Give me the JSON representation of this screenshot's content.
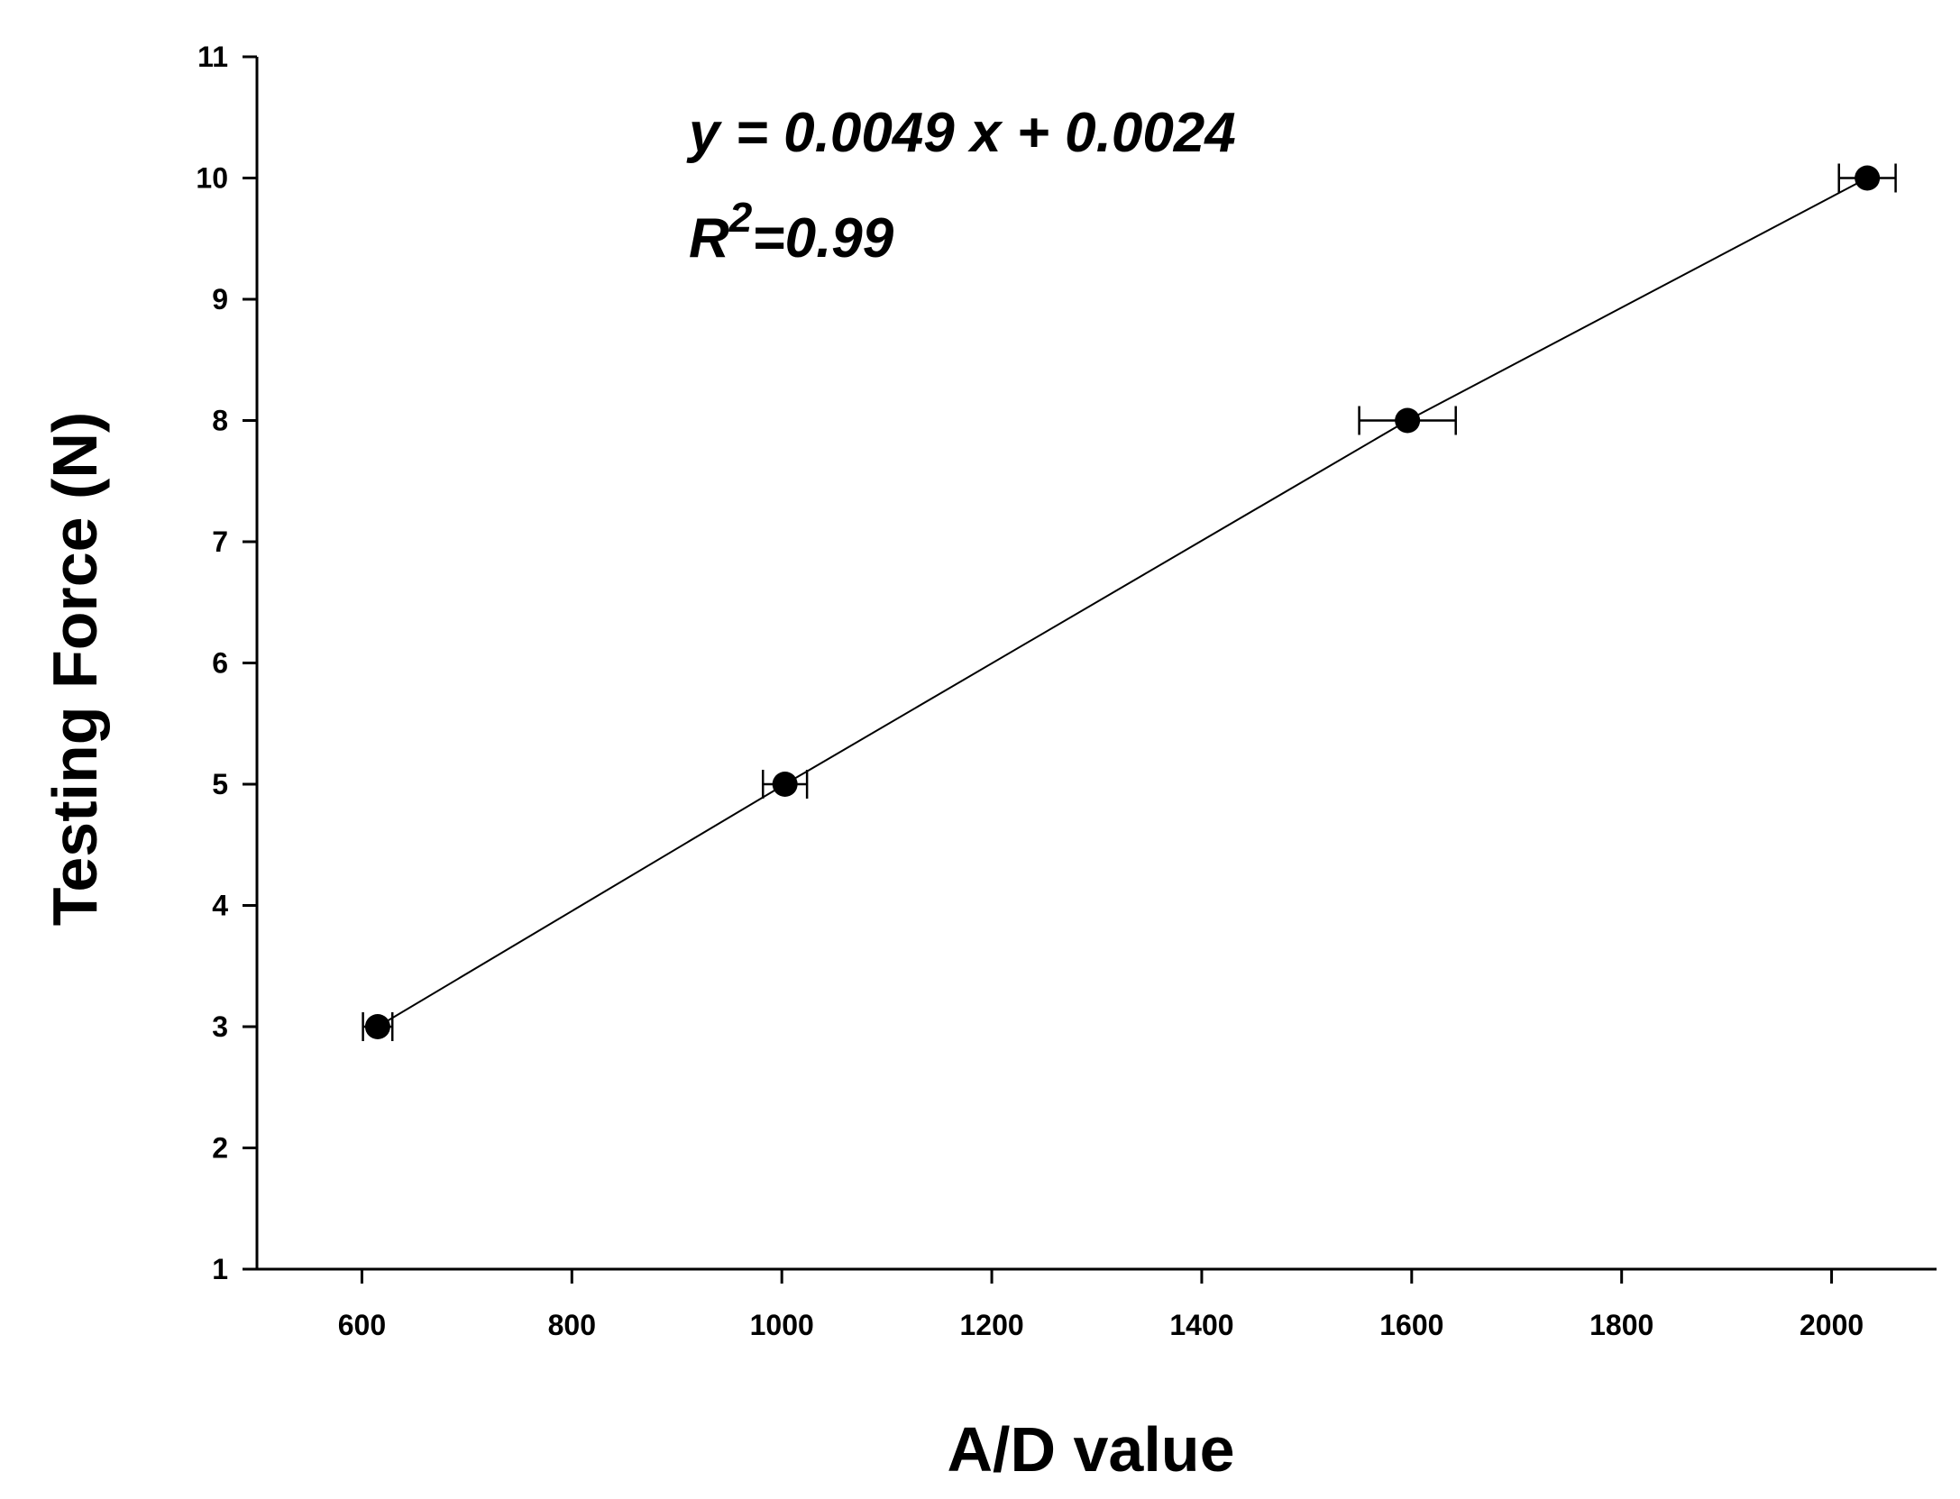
{
  "chart_data": {
    "type": "scatter",
    "xlabel": "A/D value",
    "ylabel": "Testing Force (N)",
    "xlim": [
      500,
      2100
    ],
    "ylim": [
      1,
      11
    ],
    "x_ticks": [
      600,
      800,
      1000,
      1200,
      1400,
      1600,
      1800,
      2000
    ],
    "y_ticks": [
      1,
      2,
      3,
      4,
      5,
      6,
      7,
      8,
      9,
      10,
      11
    ],
    "grid": false,
    "series": [
      {
        "x": [
          615,
          1003,
          1596,
          2034
        ],
        "y": [
          3,
          5,
          8,
          10
        ],
        "x_error": [
          14,
          21,
          46,
          27
        ],
        "marker": "filled-circle",
        "line": "connected"
      }
    ],
    "annotations": {
      "equation": "y = 0.0049 x + 0.0024",
      "r2_prefix": "R",
      "r2_superscript": "2",
      "r2_suffix": "=0.99"
    },
    "colors": {
      "marker": "#000000",
      "line": "#000000",
      "axis": "#000000"
    }
  }
}
